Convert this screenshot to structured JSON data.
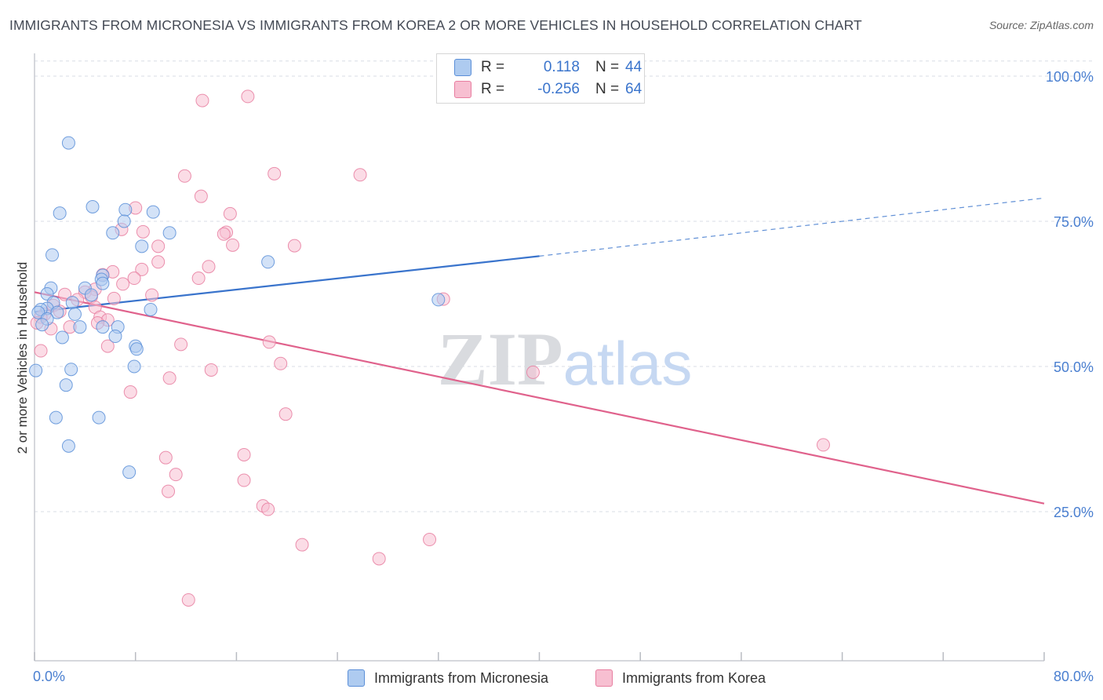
{
  "title": "IMMIGRANTS FROM MICRONESIA VS IMMIGRANTS FROM KOREA 2 OR MORE VEHICLES IN HOUSEHOLD CORRELATION CHART",
  "source": "Source: ZipAtlas.com",
  "colors": {
    "blue": "#5b8fd8",
    "blue_fill": "#aecbf0",
    "blue_line": "#3a74cc",
    "pink": "#e87ea0",
    "pink_fill": "#f7bfd1",
    "pink_line": "#e0628c",
    "axis_text": "#4a7fd0",
    "grid": "#d8dde6"
  },
  "legend": {
    "r_label": "R =",
    "n_label": "N =",
    "rows": [
      {
        "name": "Immigrants from Micronesia",
        "r": "0.118",
        "n": "44"
      },
      {
        "name": "Immigrants from Korea",
        "r": "-0.256",
        "n": "64"
      }
    ]
  },
  "chart_data": {
    "type": "scatter",
    "title": "IMMIGRANTS FROM MICRONESIA VS IMMIGRANTS FROM KOREA 2 OR MORE VEHICLES IN HOUSEHOLD CORRELATION CHART",
    "xlabel": "",
    "ylabel": "2 or more Vehicles in Household",
    "xlim": [
      0,
      80
    ],
    "ylim": [
      0,
      102
    ],
    "x_tick_labels": [
      "0.0%",
      "80.0%"
    ],
    "y_ticks": [
      25,
      50,
      75,
      100
    ],
    "y_tick_labels": [
      "25.0%",
      "50.0%",
      "75.0%",
      "100.0%"
    ],
    "grid": true,
    "legend_position": "bottom",
    "watermark": "ZIPatlas",
    "series": [
      {
        "name": "Immigrants from Micronesia",
        "color": "blue",
        "r": 0.118,
        "n": 44,
        "trend": {
          "x0": 0,
          "y0": 59.4,
          "x1": 40,
          "y1": 69.0,
          "dash_to_x": 80,
          "dash_to_y": 79.0
        },
        "points": [
          [
            2.7,
            88.5
          ],
          [
            4.6,
            77.5
          ],
          [
            7.2,
            77.0
          ],
          [
            9.4,
            76.6
          ],
          [
            2.0,
            76.4
          ],
          [
            7.1,
            75.0
          ],
          [
            6.2,
            73.0
          ],
          [
            10.7,
            73.0
          ],
          [
            8.5,
            70.7
          ],
          [
            1.4,
            69.2
          ],
          [
            18.5,
            68.0
          ],
          [
            5.4,
            65.7
          ],
          [
            5.3,
            65.0
          ],
          [
            5.4,
            64.3
          ],
          [
            1.3,
            63.5
          ],
          [
            4.0,
            63.5
          ],
          [
            1.0,
            62.5
          ],
          [
            4.5,
            62.3
          ],
          [
            32.0,
            61.5
          ],
          [
            3.0,
            61.0
          ],
          [
            1.5,
            61.0
          ],
          [
            1.0,
            60.0
          ],
          [
            0.5,
            59.8
          ],
          [
            9.2,
            59.8
          ],
          [
            1.8,
            59.3
          ],
          [
            0.3,
            59.3
          ],
          [
            3.2,
            59.0
          ],
          [
            1.0,
            58.2
          ],
          [
            0.6,
            57.2
          ],
          [
            3.6,
            56.8
          ],
          [
            5.4,
            56.8
          ],
          [
            6.6,
            56.8
          ],
          [
            6.4,
            55.2
          ],
          [
            2.2,
            55.0
          ],
          [
            8.0,
            53.5
          ],
          [
            8.1,
            53.0
          ],
          [
            2.9,
            49.5
          ],
          [
            7.9,
            50.0
          ],
          [
            0.1,
            49.3
          ],
          [
            2.5,
            46.8
          ],
          [
            1.7,
            41.2
          ],
          [
            5.1,
            41.2
          ],
          [
            2.7,
            36.3
          ],
          [
            7.5,
            31.8
          ]
        ]
      },
      {
        "name": "Immigrants from Korea",
        "color": "pink",
        "r": -0.256,
        "n": 64,
        "trend": {
          "x0": 0,
          "y0": 62.8,
          "x1": 80,
          "y1": 26.4
        },
        "points": [
          [
            16.9,
            96.5
          ],
          [
            13.3,
            95.8
          ],
          [
            19.0,
            83.2
          ],
          [
            25.8,
            83.0
          ],
          [
            11.9,
            82.8
          ],
          [
            13.2,
            79.3
          ],
          [
            8.0,
            77.3
          ],
          [
            15.5,
            76.3
          ],
          [
            6.9,
            73.6
          ],
          [
            15.2,
            73.1
          ],
          [
            8.6,
            73.2
          ],
          [
            15.0,
            72.8
          ],
          [
            20.6,
            70.8
          ],
          [
            15.7,
            70.9
          ],
          [
            9.8,
            70.7
          ],
          [
            9.8,
            68.0
          ],
          [
            13.8,
            67.2
          ],
          [
            8.5,
            66.7
          ],
          [
            6.2,
            66.3
          ],
          [
            5.4,
            65.8
          ],
          [
            13.0,
            65.2
          ],
          [
            7.9,
            65.2
          ],
          [
            7.0,
            64.2
          ],
          [
            4.8,
            63.3
          ],
          [
            4.0,
            62.8
          ],
          [
            9.3,
            62.3
          ],
          [
            2.4,
            62.4
          ],
          [
            3.4,
            61.5
          ],
          [
            4.5,
            62.0
          ],
          [
            6.3,
            61.7
          ],
          [
            32.4,
            61.6
          ],
          [
            1.5,
            60.5
          ],
          [
            4.8,
            60.2
          ],
          [
            2.0,
            59.5
          ],
          [
            0.8,
            59.0
          ],
          [
            0.5,
            58.5
          ],
          [
            5.2,
            58.5
          ],
          [
            5.8,
            58.0
          ],
          [
            5.0,
            57.5
          ],
          [
            2.8,
            56.8
          ],
          [
            0.2,
            57.5
          ],
          [
            1.3,
            56.5
          ],
          [
            18.6,
            54.2
          ],
          [
            11.6,
            53.8
          ],
          [
            5.8,
            53.5
          ],
          [
            0.5,
            52.7
          ],
          [
            19.5,
            50.5
          ],
          [
            14.0,
            49.4
          ],
          [
            39.5,
            49.0
          ],
          [
            10.7,
            48.0
          ],
          [
            7.6,
            45.6
          ],
          [
            19.9,
            41.8
          ],
          [
            62.5,
            36.5
          ],
          [
            16.6,
            34.8
          ],
          [
            10.4,
            34.3
          ],
          [
            11.2,
            31.4
          ],
          [
            16.6,
            30.4
          ],
          [
            10.6,
            28.5
          ],
          [
            18.1,
            26.0
          ],
          [
            18.5,
            25.4
          ],
          [
            31.3,
            20.2
          ],
          [
            21.2,
            19.3
          ],
          [
            27.3,
            16.9
          ],
          [
            12.2,
            9.8
          ]
        ]
      }
    ]
  }
}
